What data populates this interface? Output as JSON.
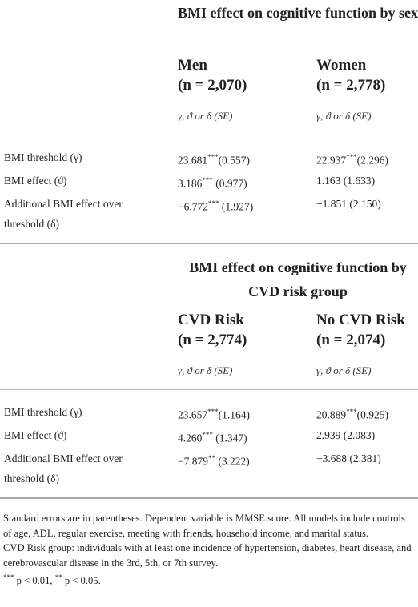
{
  "sections": [
    {
      "title": "BMI effect on cognitive function by sex",
      "groups": [
        {
          "name": "Men",
          "n": "(n = 2,070)"
        },
        {
          "name": "Women",
          "n": "(n = 2,778)"
        }
      ],
      "subheader": [
        "γ, ϑ  or δ (SE)",
        "γ, ϑ  or δ (SE)"
      ],
      "rows": [
        {
          "label": "BMI threshold (γ)",
          "cells": [
            {
              "estimate": "23.681",
              "stars": "***",
              "se": "(0.557)"
            },
            {
              "estimate": "22.937",
              "stars": "***",
              "se": "(2.296)"
            }
          ]
        },
        {
          "label": "BMI effect (ϑ)",
          "cells": [
            {
              "estimate": "3.186",
              "stars": "***",
              "se": " (0.977)"
            },
            {
              "estimate": "1.163",
              "stars": "",
              "se": " (1.633)"
            }
          ]
        },
        {
          "label": "Additional BMI effect over threshold (δ)",
          "cells": [
            {
              "estimate": "−6.772",
              "stars": "***",
              "se": " (1.927)"
            },
            {
              "estimate": "−1.851",
              "stars": "",
              "se": " (2.150)"
            }
          ]
        }
      ]
    },
    {
      "title": "BMI effect on cognitive function by CVD risk group",
      "groups": [
        {
          "name": "CVD Risk",
          "n": "(n = 2,774)"
        },
        {
          "name": "No CVD Risk",
          "n": "(n = 2,074)"
        }
      ],
      "subheader": [
        "γ, ϑ  or δ (SE)",
        "γ, ϑ  or δ (SE)"
      ],
      "rows": [
        {
          "label": "BMI threshold (γ)",
          "cells": [
            {
              "estimate": "23.657",
              "stars": "***",
              "se": "(1.164)"
            },
            {
              "estimate": "20.889",
              "stars": "***",
              "se": "(0.925)"
            }
          ]
        },
        {
          "label": "BMI effect (ϑ)",
          "cells": [
            {
              "estimate": "4.260",
              "stars": "***",
              "se": " (1.347)"
            },
            {
              "estimate": "2.939",
              "stars": "",
              "se": " (2.083)"
            }
          ]
        },
        {
          "label": "Additional BMI effect over threshold (δ)",
          "cells": [
            {
              "estimate": "−7.879",
              "stars": "**",
              "se": " (3.222)"
            },
            {
              "estimate": "−3.688",
              "stars": "",
              "se": " (2.381)"
            }
          ]
        }
      ]
    }
  ],
  "footnotes": [
    [
      {
        "text": "Standard errors are in parentheses. Dependent variable is MMSE score. All models include controls of age, ADL, regular exercise, meeting with friends, household income, and marital status."
      }
    ],
    [
      {
        "text": "CVD Risk group: individuals with at least one incidence of hypertension, diabetes, heart disease, and cerebrovascular disease in the 3rd, 5th, or 7th survey."
      }
    ],
    [
      {
        "text": "***",
        "sup": true
      },
      {
        "text": " p < 0.01, "
      },
      {
        "text": "**",
        "sup": true
      },
      {
        "text": " p < 0.05."
      }
    ]
  ]
}
